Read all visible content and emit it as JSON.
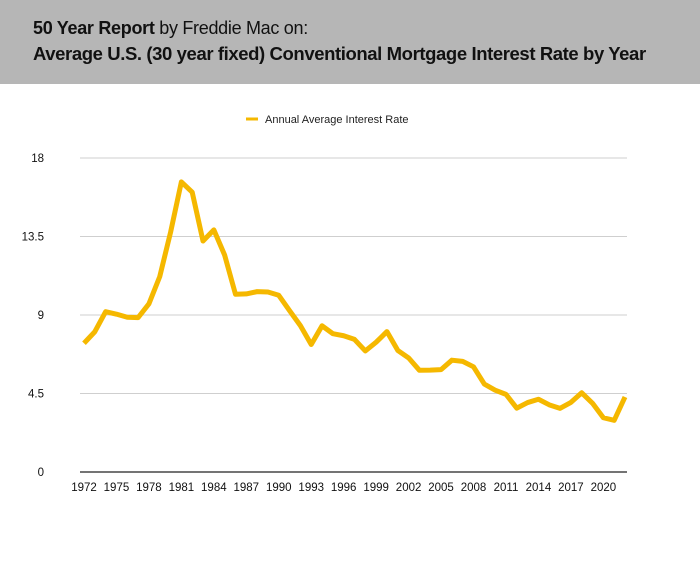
{
  "header": {
    "title_bold": "50 Year Report",
    "title_rest": " by Freddie  Mac on:",
    "subtitle": "Average U.S. (30 year fixed) Conventional Mortgage Interest Rate by Year",
    "background": "#b6b6b6"
  },
  "chart_data": {
    "type": "line",
    "title": "Average U.S. (30 year fixed) Conventional Mortgage Interest Rate by Year",
    "xlabel": "",
    "ylabel": "",
    "x": [
      1972,
      1973,
      1974,
      1975,
      1976,
      1977,
      1978,
      1979,
      1980,
      1981,
      1982,
      1983,
      1984,
      1985,
      1986,
      1987,
      1988,
      1989,
      1990,
      1991,
      1992,
      1993,
      1994,
      1995,
      1996,
      1997,
      1998,
      1999,
      2000,
      2001,
      2002,
      2003,
      2004,
      2005,
      2006,
      2007,
      2008,
      2009,
      2010,
      2011,
      2012,
      2013,
      2014,
      2015,
      2016,
      2017,
      2018,
      2019,
      2020,
      2021,
      2022
    ],
    "series": [
      {
        "name": "Annual Average Interest Rate",
        "color": "#f5b800",
        "values": [
          7.38,
          8.04,
          9.19,
          9.05,
          8.87,
          8.85,
          9.64,
          11.2,
          13.74,
          16.63,
          16.04,
          13.24,
          13.88,
          12.43,
          10.19,
          10.21,
          10.34,
          10.32,
          10.13,
          9.25,
          8.39,
          7.31,
          8.38,
          7.93,
          7.81,
          7.6,
          6.94,
          7.44,
          8.05,
          6.97,
          6.54,
          5.83,
          5.84,
          5.87,
          6.41,
          6.34,
          6.03,
          5.04,
          4.69,
          4.45,
          3.66,
          3.98,
          4.17,
          3.85,
          3.65,
          3.99,
          4.54,
          3.94,
          3.11,
          2.96,
          4.3
        ]
      }
    ],
    "xticks": [
      "1972",
      "1975",
      "1978",
      "1981",
      "1984",
      "1987",
      "1990",
      "1993",
      "1996",
      "1999",
      "2002",
      "2005",
      "2008",
      "2011",
      "2014",
      "2017",
      "2020"
    ],
    "yticks": [
      "0",
      "4.5",
      "9",
      "13.5",
      "18"
    ],
    "ylim": [
      0,
      18
    ],
    "xlim": [
      1972,
      2022
    ],
    "grid": true,
    "legend": "top-center"
  }
}
